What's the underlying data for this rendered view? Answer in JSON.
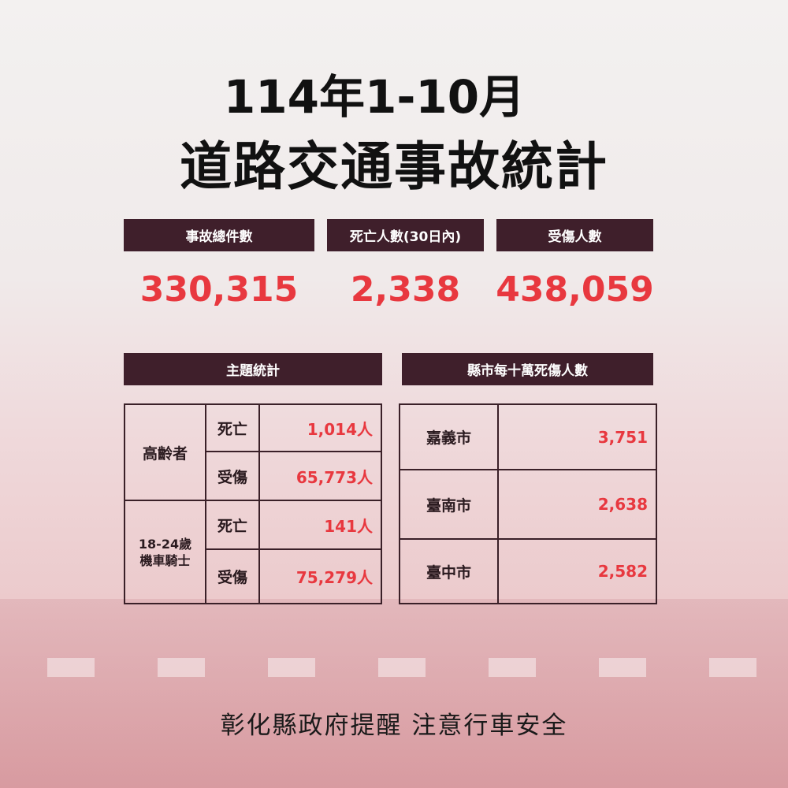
{
  "title": {
    "line1": "114年1-10月",
    "line2": "道路交通事故統計"
  },
  "summary": [
    {
      "label": "事故總件數",
      "value": "330,315"
    },
    {
      "label": "死亡人數(30日內)",
      "value": "2,338"
    },
    {
      "label": "受傷人數",
      "value": "438,059"
    }
  ],
  "topic": {
    "header": "主題統計",
    "groups": [
      {
        "name": "高齡者",
        "rows": [
          {
            "type": "死亡",
            "value": "1,014人"
          },
          {
            "type": "受傷",
            "value": "65,773人"
          }
        ]
      },
      {
        "name_line1": "18-24歲",
        "name_line2": "機車騎士",
        "rows": [
          {
            "type": "死亡",
            "value": "141人"
          },
          {
            "type": "受傷",
            "value": "75,279人"
          }
        ]
      }
    ]
  },
  "county": {
    "header": "縣市每十萬死傷人數",
    "rows": [
      {
        "name": "嘉義市",
        "value": "3,751"
      },
      {
        "name": "臺南市",
        "value": "2,638"
      },
      {
        "name": "臺中市",
        "value": "2,582"
      }
    ]
  },
  "footer": "彰化縣政府提醒 注意行車安全",
  "colors": {
    "header_bg": "#3f1f2b",
    "value_red": "#e8383f"
  }
}
